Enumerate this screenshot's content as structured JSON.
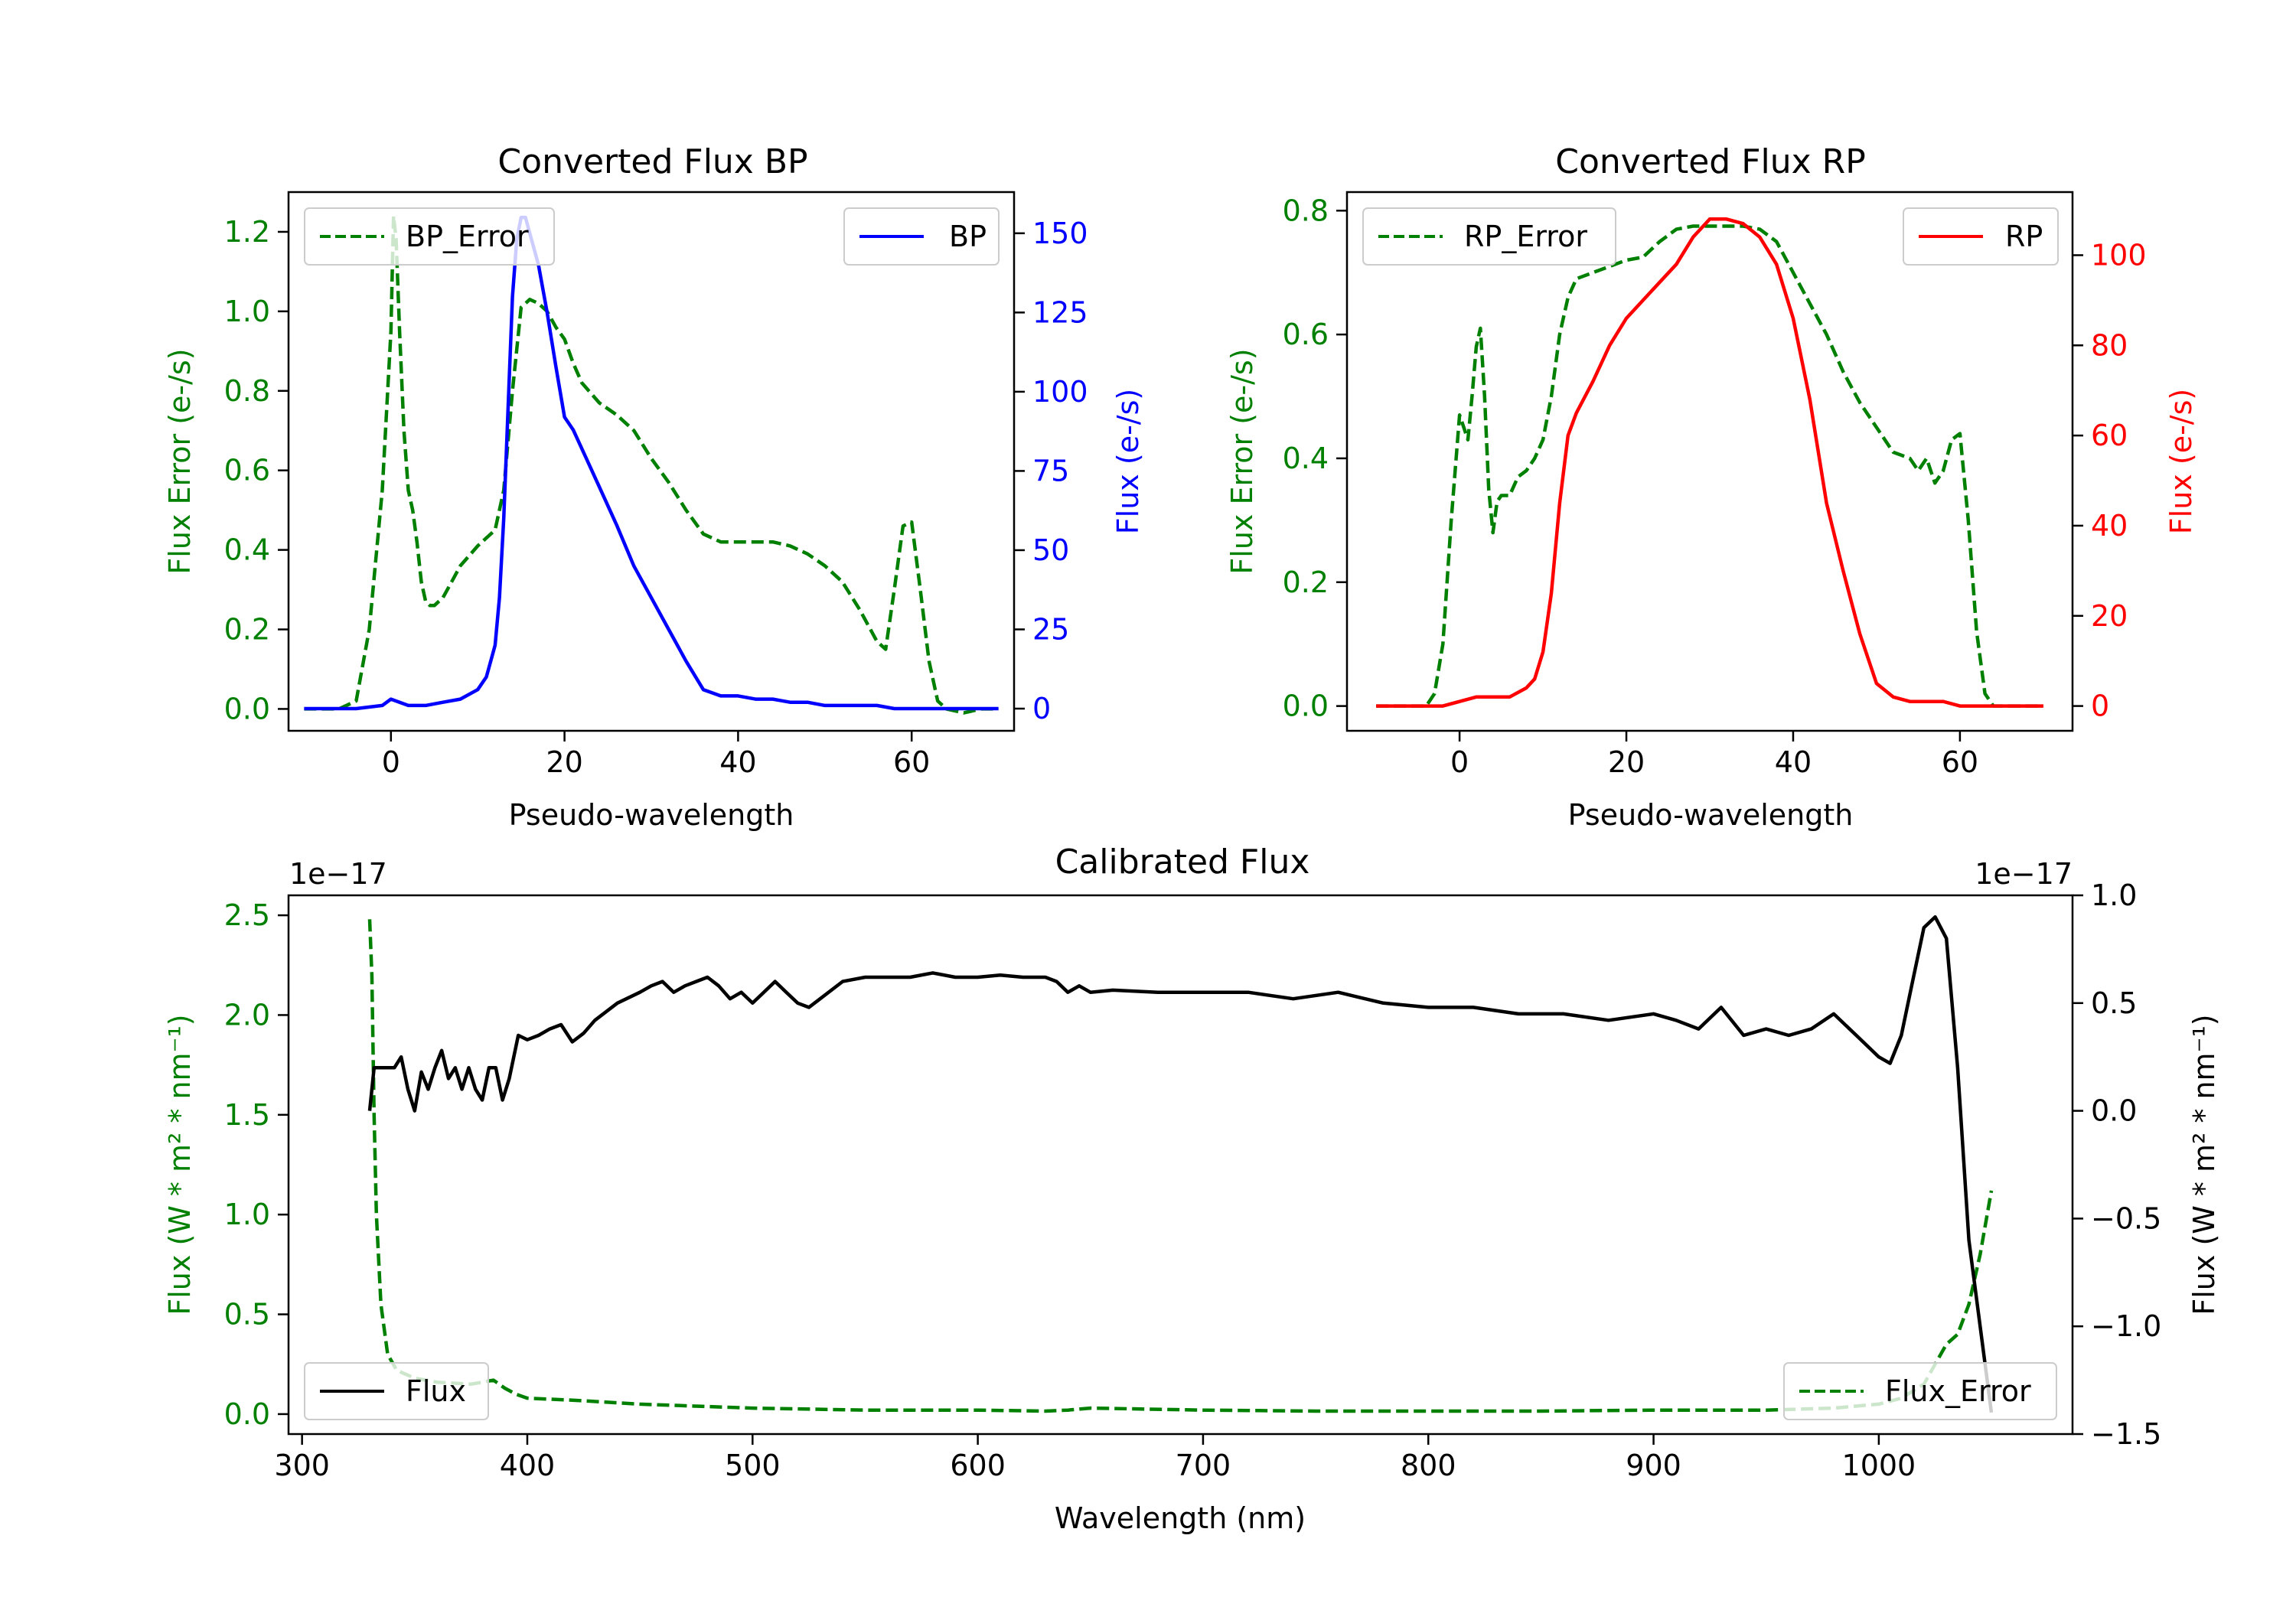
{
  "colors": {
    "green": "#008000",
    "blue": "#0000ff",
    "red": "#ff0000",
    "black": "#000000"
  },
  "chart_data": [
    {
      "id": "bp",
      "type": "line",
      "title": "Converted Flux BP",
      "xlabel": "Pseudo-wavelength",
      "ylabel_left": "Flux Error (e-/s)",
      "ylabel_right": "Flux (e-/s)",
      "xlim": [
        -11.8,
        71.8
      ],
      "ylim_left": [
        -0.055,
        1.3
      ],
      "ylim_right": [
        -7,
        163
      ],
      "xticks": [
        0,
        20,
        40,
        60
      ],
      "yticks_left": [
        0.0,
        0.2,
        0.4,
        0.6,
        0.8,
        1.0,
        1.2
      ],
      "yticks_left_labels": [
        "0.0",
        "0.2",
        "0.4",
        "0.6",
        "0.8",
        "1.0",
        "1.2"
      ],
      "yticks_right": [
        0,
        25,
        50,
        75,
        100,
        125,
        150
      ],
      "yticks_right_labels": [
        "0",
        "25",
        "50",
        "75",
        "100",
        "125",
        "150"
      ],
      "left_color": "#008000",
      "right_color": "#0000ff",
      "legend_left": {
        "label": "BP_Error",
        "placement": "upper left"
      },
      "legend_right": {
        "label": "BP",
        "placement": "upper right"
      },
      "series": [
        {
          "name": "BP_Error",
          "axis": "left",
          "style": "dashed",
          "color": "#008000",
          "x": [
            -10,
            -6,
            -4,
            -2.5,
            -1,
            0,
            0.3,
            0.6,
            1,
            1.5,
            2,
            2.5,
            3,
            3.5,
            4,
            4.5,
            5,
            6,
            7,
            8,
            10,
            12,
            13,
            14,
            15,
            16,
            17,
            18,
            19,
            20,
            21,
            22,
            24,
            26,
            28,
            30,
            32,
            34,
            36,
            38,
            40,
            42,
            44,
            46,
            48,
            50,
            52,
            54,
            56,
            57,
            58,
            59,
            60,
            61,
            62,
            63,
            64,
            66,
            68,
            70
          ],
          "y": [
            0.0,
            0.0,
            0.02,
            0.2,
            0.55,
            0.95,
            1.24,
            1.18,
            0.95,
            0.7,
            0.55,
            0.5,
            0.42,
            0.32,
            0.27,
            0.26,
            0.26,
            0.28,
            0.32,
            0.36,
            0.41,
            0.45,
            0.55,
            0.8,
            1.01,
            1.03,
            1.02,
            1.0,
            0.96,
            0.93,
            0.87,
            0.82,
            0.77,
            0.74,
            0.7,
            0.63,
            0.57,
            0.5,
            0.44,
            0.42,
            0.42,
            0.42,
            0.42,
            0.41,
            0.39,
            0.36,
            0.32,
            0.25,
            0.17,
            0.15,
            0.3,
            0.46,
            0.47,
            0.3,
            0.12,
            0.02,
            0.0,
            -0.01,
            0.0,
            0.0
          ]
        },
        {
          "name": "BP",
          "axis": "right",
          "style": "solid",
          "color": "#0000ff",
          "x": [
            -10,
            -4,
            -1,
            0,
            1,
            2,
            4,
            6,
            8,
            10,
            11,
            12,
            12.5,
            13,
            13.5,
            14,
            14.5,
            15,
            15.5,
            16,
            17,
            18,
            19,
            20,
            21,
            22,
            24,
            26,
            28,
            30,
            32,
            34,
            36,
            38,
            40,
            42,
            44,
            46,
            48,
            50,
            52,
            54,
            56,
            58,
            60,
            62,
            64,
            66,
            68,
            70
          ],
          "y": [
            0,
            0,
            1,
            3,
            2,
            1,
            1,
            2,
            3,
            6,
            10,
            20,
            35,
            60,
            95,
            130,
            148,
            155,
            155,
            150,
            140,
            125,
            108,
            92,
            88,
            82,
            70,
            58,
            45,
            35,
            25,
            15,
            6,
            4,
            4,
            3,
            3,
            2,
            2,
            1,
            1,
            1,
            1,
            0,
            0,
            0,
            0,
            0,
            0,
            0
          ]
        }
      ]
    },
    {
      "id": "rp",
      "type": "line",
      "title": "Converted Flux RP",
      "xlabel": "Pseudo-wavelength",
      "ylabel_left": "Flux Error (e-/s)",
      "ylabel_right": "Flux (e-/s)",
      "xlim": [
        -13.5,
        73.5
      ],
      "ylim_left": [
        -0.04,
        0.83
      ],
      "ylim_right": [
        -5.5,
        114
      ],
      "xticks": [
        0,
        20,
        40,
        60
      ],
      "yticks_left": [
        0.0,
        0.2,
        0.4,
        0.6,
        0.8
      ],
      "yticks_left_labels": [
        "0.0",
        "0.2",
        "0.4",
        "0.6",
        "0.8"
      ],
      "yticks_right": [
        0,
        20,
        40,
        60,
        80,
        100
      ],
      "yticks_right_labels": [
        "0",
        "20",
        "40",
        "60",
        "80",
        "100"
      ],
      "left_color": "#008000",
      "right_color": "#ff0000",
      "legend_left": {
        "label": "RP_Error",
        "placement": "upper left"
      },
      "legend_right": {
        "label": "RP",
        "placement": "upper right"
      },
      "series": [
        {
          "name": "RP_Error",
          "axis": "left",
          "style": "dashed",
          "color": "#008000",
          "x": [
            -10,
            -6,
            -4,
            -3,
            -2,
            -1,
            0,
            0.5,
            1,
            1.5,
            2,
            2.5,
            3,
            3.5,
            4,
            4.5,
            5,
            6,
            7,
            8,
            9,
            10,
            11,
            12,
            13,
            14,
            16,
            18,
            20,
            22,
            24,
            26,
            28,
            30,
            32,
            34,
            36,
            38,
            40,
            42,
            44,
            46,
            48,
            50,
            52,
            54,
            55,
            56,
            57,
            58,
            59,
            60,
            61,
            62,
            63,
            64,
            66,
            68,
            70
          ],
          "y": [
            0.0,
            0.0,
            0.0,
            0.02,
            0.1,
            0.3,
            0.47,
            0.45,
            0.43,
            0.5,
            0.58,
            0.61,
            0.5,
            0.35,
            0.28,
            0.33,
            0.34,
            0.34,
            0.37,
            0.38,
            0.4,
            0.43,
            0.5,
            0.6,
            0.66,
            0.69,
            0.7,
            0.71,
            0.72,
            0.725,
            0.75,
            0.77,
            0.775,
            0.775,
            0.775,
            0.775,
            0.77,
            0.75,
            0.7,
            0.65,
            0.6,
            0.54,
            0.49,
            0.45,
            0.41,
            0.4,
            0.38,
            0.4,
            0.36,
            0.38,
            0.43,
            0.44,
            0.3,
            0.12,
            0.02,
            0.0,
            0.0,
            0.0,
            0.0
          ]
        },
        {
          "name": "RP",
          "axis": "right",
          "style": "solid",
          "color": "#ff0000",
          "x": [
            -10,
            -2,
            0,
            2,
            4,
            6,
            8,
            9,
            10,
            11,
            12,
            13,
            14,
            16,
            18,
            20,
            22,
            24,
            26,
            28,
            30,
            32,
            34,
            36,
            38,
            40,
            42,
            44,
            46,
            48,
            50,
            52,
            54,
            56,
            58,
            60,
            62,
            64,
            66,
            68,
            70
          ],
          "y": [
            0,
            0,
            1,
            2,
            2,
            2,
            4,
            6,
            12,
            25,
            45,
            60,
            65,
            72,
            80,
            86,
            90,
            94,
            98,
            104,
            108,
            108,
            107,
            104,
            98,
            86,
            68,
            45,
            30,
            16,
            5,
            2,
            1,
            1,
            1,
            0,
            0,
            0,
            0,
            0,
            0
          ]
        }
      ]
    },
    {
      "id": "cal",
      "type": "line",
      "title": "Calibrated Flux",
      "xlabel": "Wavelength (nm)",
      "ylabel_left": "Flux (W * m² * nm⁻¹)",
      "ylabel_right": "Flux (W * m² * nm⁻¹)",
      "offset_left": "1e−17",
      "offset_right": "1e−17",
      "xlim": [
        294,
        1086
      ],
      "ylim_left": [
        -0.1,
        2.6
      ],
      "ylim_right": [
        -1.5,
        1.0
      ],
      "xticks": [
        300,
        400,
        500,
        600,
        700,
        800,
        900,
        1000
      ],
      "yticks_left": [
        0.0,
        0.5,
        1.0,
        1.5,
        2.0,
        2.5
      ],
      "yticks_left_labels": [
        "0.0",
        "0.5",
        "1.0",
        "1.5",
        "2.0",
        "2.5"
      ],
      "yticks_right": [
        -1.5,
        -1.0,
        -0.5,
        0.0,
        0.5,
        1.0
      ],
      "yticks_right_labels": [
        "−1.5",
        "−1.0",
        "−0.5",
        "0.0",
        "0.5",
        "1.0"
      ],
      "left_color": "#008000",
      "right_color": "#000000",
      "legend_left": {
        "label": "Flux",
        "placement": "lower left"
      },
      "legend_right": {
        "label": "Flux_Error",
        "placement": "lower right"
      },
      "series": [
        {
          "name": "Flux_Error",
          "axis": "left",
          "style": "dashed",
          "color": "#008000",
          "x": [
            330,
            331,
            332,
            333,
            335,
            338,
            342,
            350,
            360,
            375,
            385,
            390,
            395,
            400,
            420,
            450,
            500,
            550,
            600,
            630,
            640,
            650,
            700,
            750,
            800,
            850,
            900,
            950,
            980,
            1000,
            1010,
            1020,
            1025,
            1030,
            1035,
            1040,
            1045,
            1050
          ],
          "y": [
            2.48,
            2.2,
            1.5,
            1.0,
            0.55,
            0.3,
            0.22,
            0.18,
            0.16,
            0.15,
            0.17,
            0.13,
            0.1,
            0.08,
            0.07,
            0.05,
            0.03,
            0.02,
            0.02,
            0.015,
            0.02,
            0.03,
            0.02,
            0.015,
            0.015,
            0.015,
            0.02,
            0.02,
            0.03,
            0.05,
            0.08,
            0.15,
            0.25,
            0.35,
            0.4,
            0.55,
            0.8,
            1.12
          ]
        },
        {
          "name": "Flux",
          "axis": "right",
          "style": "solid",
          "color": "#000000",
          "x": [
            330,
            332,
            335,
            338,
            341,
            344,
            347,
            350,
            353,
            356,
            359,
            362,
            365,
            368,
            371,
            374,
            377,
            380,
            383,
            386,
            389,
            392,
            396,
            400,
            405,
            410,
            415,
            420,
            425,
            430,
            440,
            450,
            455,
            460,
            465,
            470,
            475,
            480,
            485,
            490,
            495,
            500,
            505,
            510,
            515,
            520,
            525,
            530,
            540,
            550,
            560,
            570,
            580,
            590,
            600,
            610,
            620,
            630,
            635,
            640,
            645,
            650,
            660,
            680,
            700,
            720,
            740,
            760,
            780,
            800,
            820,
            840,
            860,
            880,
            900,
            910,
            920,
            930,
            940,
            950,
            960,
            970,
            980,
            990,
            1000,
            1005,
            1010,
            1015,
            1020,
            1025,
            1030,
            1035,
            1040,
            1045,
            1050
          ],
          "y": [
            0.0,
            0.2,
            0.2,
            0.2,
            0.2,
            0.25,
            0.1,
            0.0,
            0.18,
            0.1,
            0.2,
            0.28,
            0.15,
            0.2,
            0.1,
            0.2,
            0.1,
            0.05,
            0.2,
            0.2,
            0.05,
            0.15,
            0.35,
            0.33,
            0.35,
            0.38,
            0.4,
            0.32,
            0.36,
            0.42,
            0.5,
            0.55,
            0.58,
            0.6,
            0.55,
            0.58,
            0.6,
            0.62,
            0.58,
            0.52,
            0.55,
            0.5,
            0.55,
            0.6,
            0.55,
            0.5,
            0.48,
            0.52,
            0.6,
            0.62,
            0.62,
            0.62,
            0.64,
            0.62,
            0.62,
            0.63,
            0.62,
            0.62,
            0.6,
            0.55,
            0.58,
            0.55,
            0.56,
            0.55,
            0.55,
            0.55,
            0.52,
            0.55,
            0.5,
            0.48,
            0.48,
            0.45,
            0.45,
            0.42,
            0.45,
            0.42,
            0.38,
            0.48,
            0.35,
            0.38,
            0.35,
            0.38,
            0.45,
            0.35,
            0.25,
            0.22,
            0.35,
            0.6,
            0.85,
            0.9,
            0.8,
            0.2,
            -0.6,
            -1.0,
            -1.4
          ]
        }
      ]
    }
  ]
}
